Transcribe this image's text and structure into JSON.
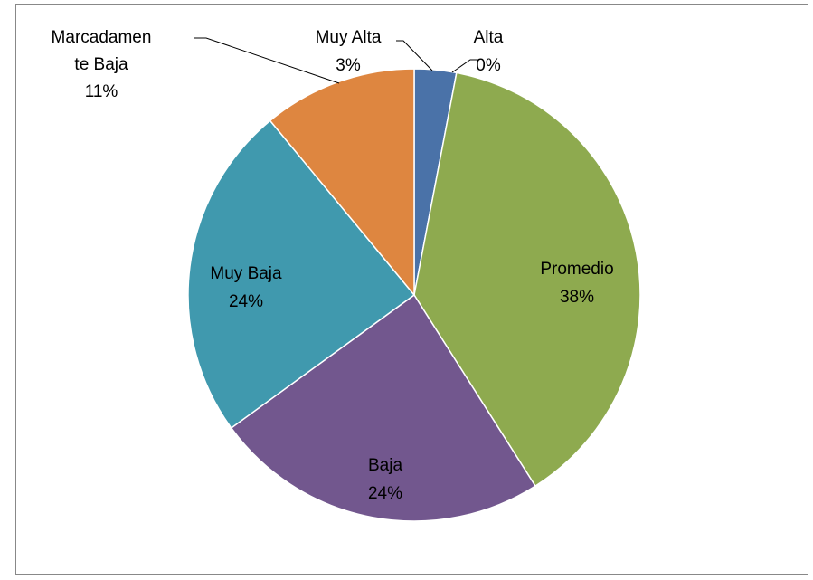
{
  "chart_data": {
    "type": "pie",
    "categories": [
      "Muy Alta",
      "Alta",
      "Promedio",
      "Baja",
      "Muy Baja",
      "Marcadamente Baja"
    ],
    "values": [
      3,
      0,
      38,
      24,
      24,
      11
    ],
    "value_labels": [
      "3%",
      "0%",
      "38%",
      "24%",
      "24%",
      "11%"
    ],
    "colors": [
      "#4a72a8",
      "#c0504d",
      "#8eaa4f",
      "#72578e",
      "#4099ae",
      "#de8640"
    ]
  }
}
